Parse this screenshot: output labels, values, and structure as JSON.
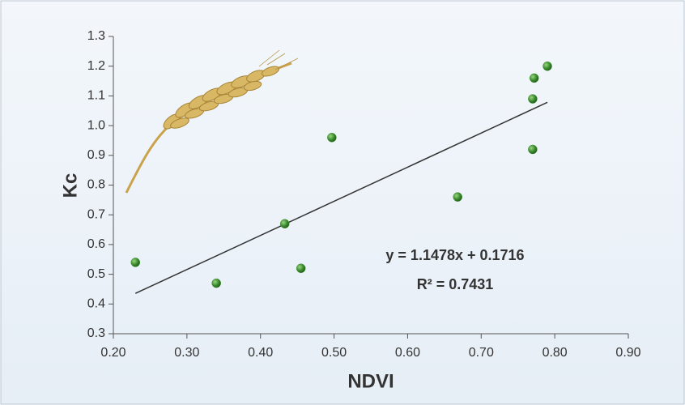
{
  "chart_data": {
    "type": "scatter",
    "x_label": "NDVI",
    "y_label": "Kc",
    "x": [
      0.23,
      0.34,
      0.433,
      0.455,
      0.497,
      0.668,
      0.77,
      0.77,
      0.772,
      0.79
    ],
    "series": [
      {
        "name": "Kc",
        "color": "#3a8a2e",
        "values": [
          0.54,
          0.47,
          0.67,
          0.52,
          0.96,
          0.76,
          0.92,
          1.09,
          1.16,
          1.2
        ]
      }
    ],
    "trendline": {
      "slope": 1.1478,
      "intercept": 0.1716,
      "color": "#333333"
    },
    "annotations": [
      "y = 1.1478x + 0.1716",
      "R² = 0.7431"
    ],
    "xlim": [
      0.2,
      0.9
    ],
    "xticks": [
      {
        "value": 0.2,
        "label": "0.20"
      },
      {
        "value": 0.3,
        "label": "0.30"
      },
      {
        "value": 0.4,
        "label": "0.40"
      },
      {
        "value": 0.5,
        "label": "0.50"
      },
      {
        "value": 0.6,
        "label": "0.60"
      },
      {
        "value": 0.7,
        "label": "0.70"
      },
      {
        "value": 0.8,
        "label": "0.80"
      },
      {
        "value": 0.9,
        "label": "0.90"
      }
    ],
    "ylim": [
      0.3,
      1.3
    ],
    "yticks": [
      0.3,
      0.4,
      0.5,
      0.6,
      0.7,
      0.8,
      0.9,
      {
        "value": 1,
        "label": "1.0"
      },
      1.1,
      1.2,
      1.3
    ],
    "grid": false
  }
}
